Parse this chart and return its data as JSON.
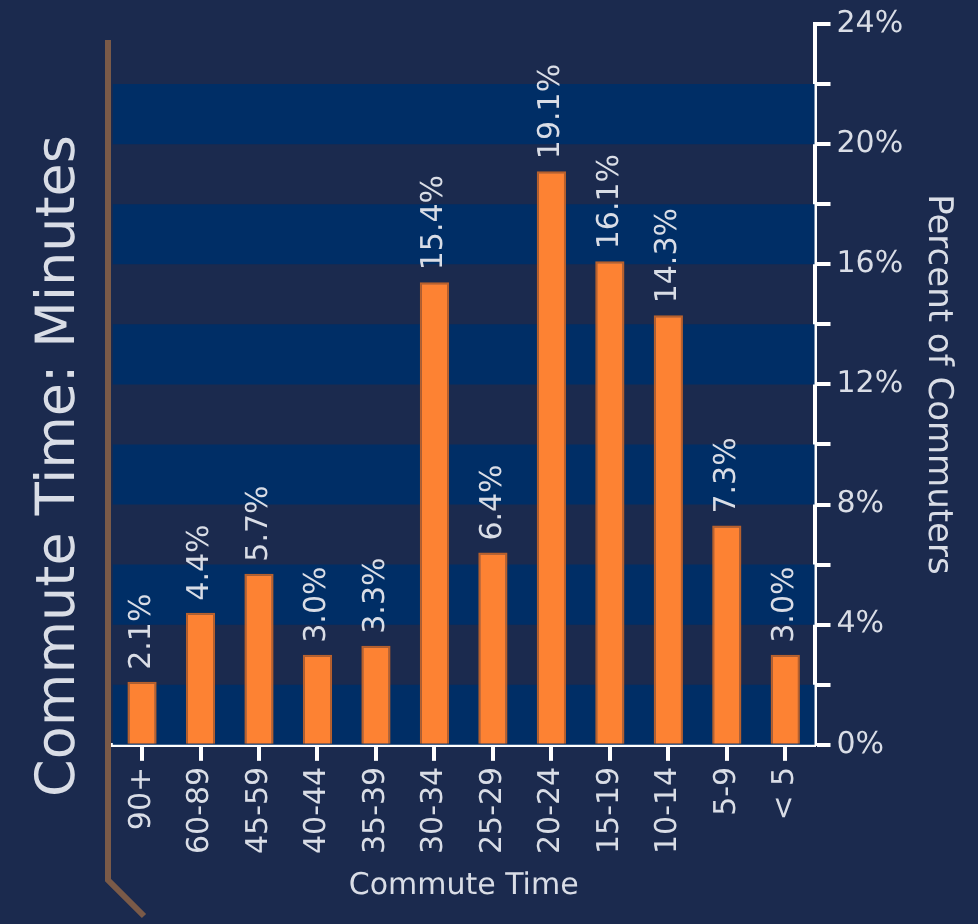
{
  "chart_data": {
    "type": "bar",
    "title": "Commute Time: Minutes",
    "xlabel": "Commute Time",
    "ylabel": "Percent of Commuters",
    "categories": [
      "90+",
      "60-89",
      "45-59",
      "40-44",
      "35-39",
      "30-34",
      "25-29",
      "20-24",
      "15-19",
      "10-14",
      "5-9",
      "< 5"
    ],
    "values": [
      2.1,
      4.4,
      5.7,
      3.0,
      3.3,
      15.4,
      6.4,
      19.1,
      16.1,
      14.3,
      7.3,
      3.0
    ],
    "value_labels": [
      "2.1%",
      "4.4%",
      "5.7%",
      "3.0%",
      "3.3%",
      "15.4%",
      "6.4%",
      "19.1%",
      "16.1%",
      "14.3%",
      "7.3%",
      "3.0%"
    ],
    "color": "#fd8233",
    "ylim": [
      0,
      24
    ],
    "yticks": [
      {
        "value": 0,
        "label": "0%"
      },
      {
        "value": 2,
        "label": null
      },
      {
        "value": 4,
        "label": "4%"
      },
      {
        "value": 6,
        "label": null
      },
      {
        "value": 8,
        "label": "8%"
      },
      {
        "value": 10,
        "label": null
      },
      {
        "value": 12,
        "label": "12%"
      },
      {
        "value": 14,
        "label": null
      },
      {
        "value": 16,
        "label": "16%"
      },
      {
        "value": 18,
        "label": null
      },
      {
        "value": 20,
        "label": "20%"
      },
      {
        "value": 22,
        "label": null
      },
      {
        "value": 24,
        "label": "24%"
      }
    ],
    "bands": [
      {
        "axis": "y",
        "from": 0,
        "to": 2,
        "color": "#002e66"
      },
      {
        "axis": "y",
        "from": 4,
        "to": 6,
        "color": "#002e66"
      },
      {
        "axis": "y",
        "from": 8,
        "to": 10,
        "color": "#002e66"
      },
      {
        "axis": "y",
        "from": 12,
        "to": 14,
        "color": "#002e66"
      },
      {
        "axis": "y",
        "from": 16,
        "to": 18,
        "color": "#002e66"
      },
      {
        "axis": "y",
        "from": 20,
        "to": 22,
        "color": "#002e66"
      }
    ],
    "grid": false,
    "legend": false
  }
}
